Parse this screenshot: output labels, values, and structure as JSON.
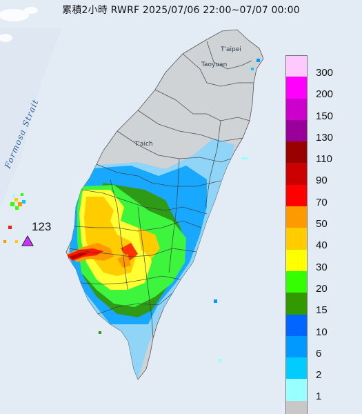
{
  "title": "累積2小時 RWRF 2025/07/06 22:00~07/07 00:00",
  "place_labels": {
    "taipei": "T'aipei",
    "taoyuan": "Taoyuan",
    "taichung": "T'aich",
    "strait": "Formosa Strait"
  },
  "max_value": "123",
  "legend": {
    "levels": [
      {
        "label": "300",
        "color": "#ffc8ff"
      },
      {
        "label": "200",
        "color": "#ff00ff"
      },
      {
        "label": "150",
        "color": "#cc00cc"
      },
      {
        "label": "130",
        "color": "#990099"
      },
      {
        "label": "110",
        "color": "#990000"
      },
      {
        "label": "90",
        "color": "#cc0000"
      },
      {
        "label": "70",
        "color": "#ff0000"
      },
      {
        "label": "50",
        "color": "#ff9900"
      },
      {
        "label": "40",
        "color": "#ffcc00"
      },
      {
        "label": "30",
        "color": "#ffff00"
      },
      {
        "label": "20",
        "color": "#33ff00"
      },
      {
        "label": "15",
        "color": "#339900"
      },
      {
        "label": "10",
        "color": "#0066ff"
      },
      {
        "label": "6",
        "color": "#0099ff"
      },
      {
        "label": "2",
        "color": "#00ccff"
      },
      {
        "label": "1",
        "color": "#99ffff"
      },
      {
        "label": "",
        "color": "#c8c8c8"
      }
    ]
  }
}
